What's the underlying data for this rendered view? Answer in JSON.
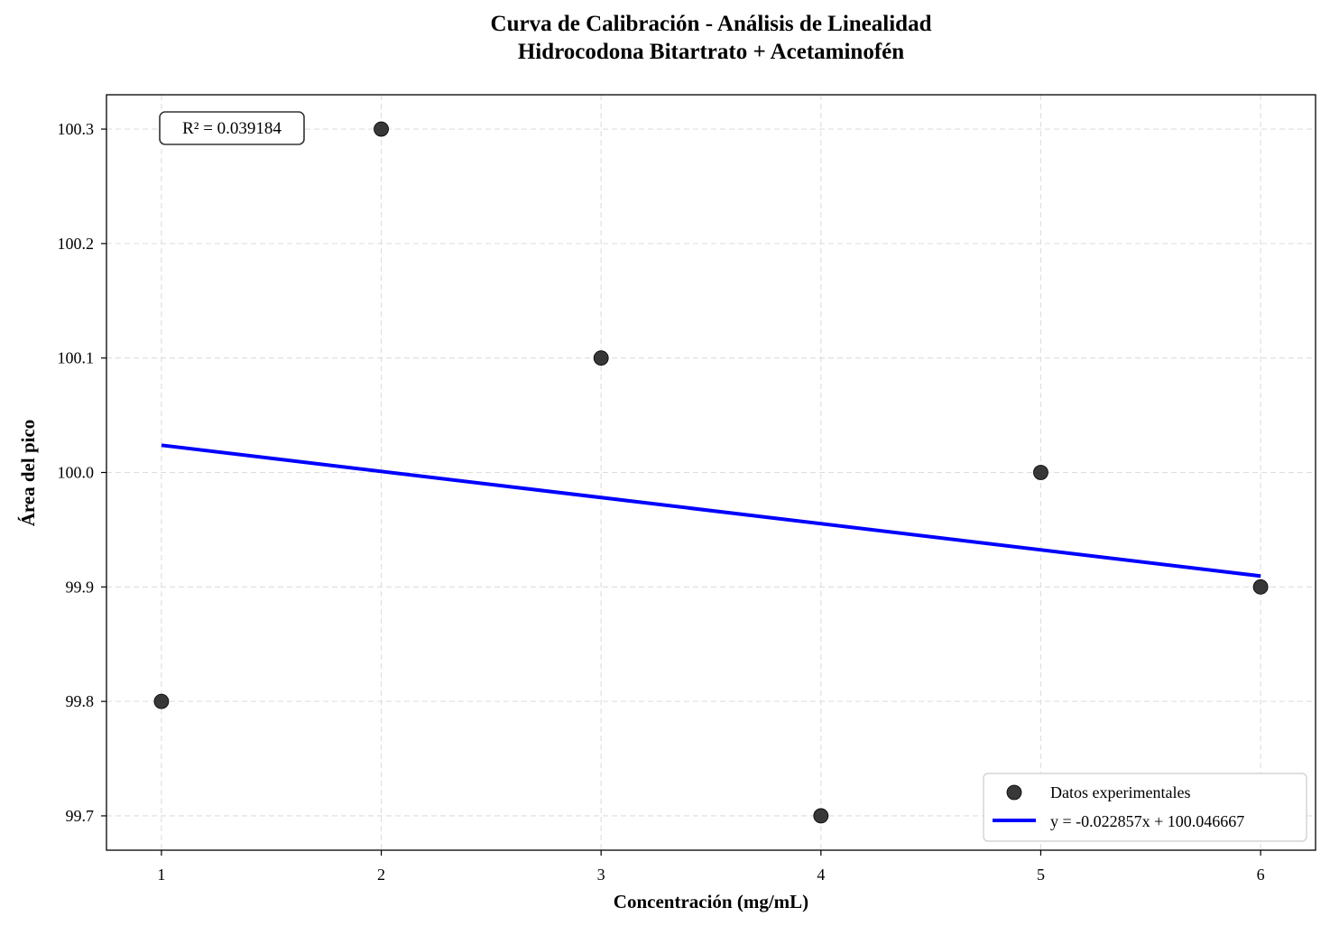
{
  "chart_data": {
    "type": "scatter",
    "title": "Curva de Calibración - Análisis de Linealidad",
    "subtitle": "Hidrocodona Bitartrato + Acetaminofén",
    "xlabel": "Concentración (mg/mL)",
    "ylabel": "Área del pico",
    "xlim": [
      0.75,
      6.25
    ],
    "ylim": [
      99.67,
      100.33
    ],
    "xticks": [
      1,
      2,
      3,
      4,
      5,
      6
    ],
    "xtick_labels": [
      "1",
      "2",
      "3",
      "4",
      "5",
      "6"
    ],
    "yticks": [
      99.7,
      99.8,
      99.9,
      100.0,
      100.1,
      100.2,
      100.3
    ],
    "ytick_labels": [
      "99.7",
      "99.8",
      "99.9",
      "100.0",
      "100.1",
      "100.2",
      "100.3"
    ],
    "grid": true,
    "legend_position": "bottom-right",
    "series": [
      {
        "name": "Datos experimentales",
        "kind": "scatter",
        "color": "#222222",
        "x": [
          1,
          2,
          3,
          4,
          5,
          6
        ],
        "y": [
          99.8,
          100.3,
          100.1,
          99.7,
          100.0,
          99.9
        ]
      },
      {
        "name": "y = -0.022857x + 100.046667",
        "kind": "line",
        "color": "#0000ff",
        "slope": -0.022857,
        "intercept": 100.046667,
        "x": [
          1,
          6
        ]
      }
    ],
    "annotation": {
      "text": "R² = 0.039184",
      "position": "top-left"
    }
  }
}
